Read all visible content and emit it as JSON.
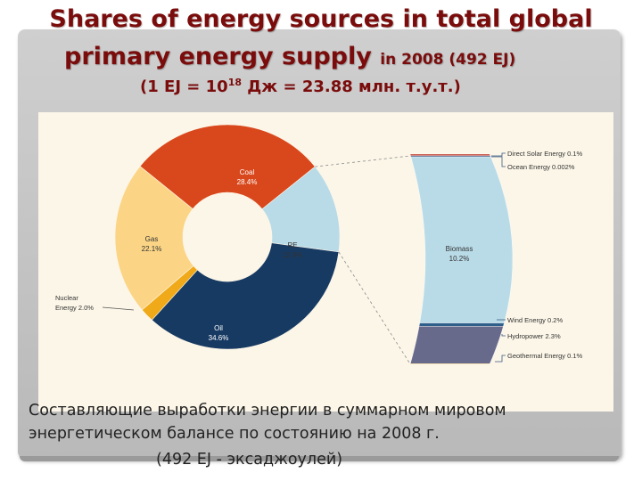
{
  "title": {
    "line1": "Shares of energy sources in total global",
    "line2_main": "primary energy supply ",
    "line2_small": "in 2008 (492 EJ)",
    "line3_pre": "(1  EJ = 10",
    "line3_sup": "18",
    "line3_post": " Дж = 23.88 млн. т.у.т.)"
  },
  "chart_data": {
    "type": "pie",
    "style": "donut",
    "unit": "%",
    "slices": [
      {
        "name": "Coal",
        "value": 28.4,
        "label": "28.4%",
        "color": "#d9481c"
      },
      {
        "name": "RE",
        "value": 12.9,
        "label": "12.9%",
        "color": "#b9dbe8"
      },
      {
        "name": "Oil",
        "value": 34.6,
        "label": "34.6%",
        "color": "#173a63"
      },
      {
        "name": "Nuclear Energy",
        "value": 2.0,
        "label": "2.0%",
        "color": "#f0a918"
      },
      {
        "name": "Gas",
        "value": 22.1,
        "label": "22.1%",
        "color": "#fbd585"
      }
    ],
    "breakdown_of": "RE",
    "breakdown": [
      {
        "name": "Direct Solar Energy",
        "value": 0.1,
        "label": "0.1%",
        "color": "#c0392b"
      },
      {
        "name": "Ocean Energy",
        "value": 0.002,
        "label": "0.002%",
        "color": "#1f3f73"
      },
      {
        "name": "Biomass",
        "value": 10.2,
        "label": "10.2%",
        "color": "#b9dbe8"
      },
      {
        "name": "Wind Energy",
        "value": 0.2,
        "label": "0.2%",
        "color": "#2e5f8a"
      },
      {
        "name": "Hydropower",
        "value": 2.3,
        "label": "2.3%",
        "color": "#686a8c"
      },
      {
        "name": "Geothermal Energy",
        "value": 0.1,
        "label": "0.1%",
        "color": "#f0a918"
      }
    ]
  },
  "caption": {
    "line1": "Составляющие выработки энергии в суммарном мировом",
    "line2": "энергетическом балансе по состоянию на 2008 г.",
    "line3": "(492  EJ - эксаджоулей)"
  }
}
